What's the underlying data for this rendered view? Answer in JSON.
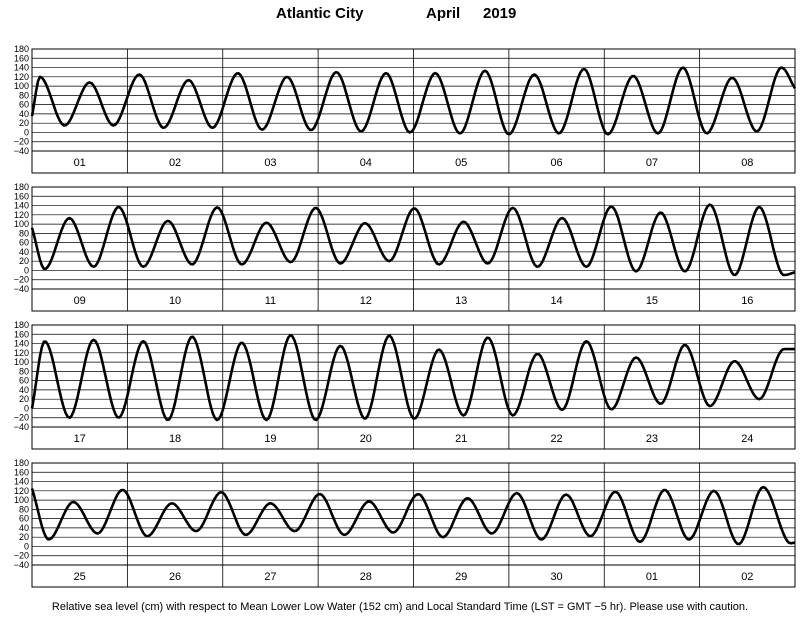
{
  "title": {
    "station": "Atlantic City",
    "month": "April",
    "year": "2019"
  },
  "caption": "Relative sea level (cm) with respect to Mean Lower Low Water (152 cm) and Local Standard Time (LST = GMT −5 hr). Please use with caution.",
  "colors": {
    "line": "#000000",
    "grid": "#000000",
    "background": "#ffffff"
  },
  "chart_data": {
    "type": "line",
    "ylabel": "",
    "xlabel": "",
    "ylim": [
      -40,
      180
    ],
    "yticks": [
      -40,
      -20,
      0,
      20,
      40,
      60,
      80,
      100,
      120,
      140,
      160,
      180
    ],
    "panels": [
      {
        "days": [
          "01",
          "02",
          "03",
          "04",
          "05",
          "06",
          "07",
          "08"
        ],
        "tide_series": [
          {
            "time_h": 0,
            "level_cm": 35
          },
          {
            "time_h": 2,
            "level_cm": 120
          },
          {
            "time_h": 8.2,
            "level_cm": 15
          },
          {
            "time_h": 14.5,
            "level_cm": 108
          },
          {
            "time_h": 20.5,
            "level_cm": 15
          },
          {
            "time_h": 27,
            "level_cm": 125
          },
          {
            "time_h": 33.1,
            "level_cm": 10
          },
          {
            "time_h": 39.4,
            "level_cm": 113
          },
          {
            "time_h": 45.4,
            "level_cm": 10
          },
          {
            "time_h": 51.8,
            "level_cm": 128
          },
          {
            "time_h": 57.9,
            "level_cm": 6
          },
          {
            "time_h": 64.2,
            "level_cm": 120
          },
          {
            "time_h": 70.2,
            "level_cm": 5
          },
          {
            "time_h": 76.6,
            "level_cm": 130
          },
          {
            "time_h": 82.8,
            "level_cm": 2
          },
          {
            "time_h": 89.1,
            "level_cm": 128
          },
          {
            "time_h": 95.1,
            "level_cm": 0
          },
          {
            "time_h": 101.5,
            "level_cm": 128
          },
          {
            "time_h": 107.7,
            "level_cm": -2
          },
          {
            "time_h": 114,
            "level_cm": 133
          },
          {
            "time_h": 120,
            "level_cm": -4
          },
          {
            "time_h": 126.4,
            "level_cm": 125
          },
          {
            "time_h": 132.6,
            "level_cm": -2
          },
          {
            "time_h": 138.9,
            "level_cm": 137
          },
          {
            "time_h": 144.9,
            "level_cm": -4
          },
          {
            "time_h": 151.3,
            "level_cm": 122
          },
          {
            "time_h": 157.5,
            "level_cm": -2
          },
          {
            "time_h": 163.8,
            "level_cm": 140
          },
          {
            "time_h": 169.8,
            "level_cm": -2
          },
          {
            "time_h": 176.2,
            "level_cm": 118
          },
          {
            "time_h": 182.4,
            "level_cm": 2
          },
          {
            "time_h": 188.6,
            "level_cm": 140
          },
          {
            "time_h": 192,
            "level_cm": 95
          }
        ]
      },
      {
        "days": [
          "09",
          "10",
          "11",
          "12",
          "13",
          "14",
          "15",
          "16"
        ],
        "tide_series": [
          {
            "time_h": 0,
            "level_cm": 92
          },
          {
            "time_h": 3.2,
            "level_cm": 3
          },
          {
            "time_h": 9.4,
            "level_cm": 113
          },
          {
            "time_h": 15.5,
            "level_cm": 8
          },
          {
            "time_h": 21.8,
            "level_cm": 137
          },
          {
            "time_h": 28,
            "level_cm": 8
          },
          {
            "time_h": 34.2,
            "level_cm": 107
          },
          {
            "time_h": 40.3,
            "level_cm": 13
          },
          {
            "time_h": 46.6,
            "level_cm": 136
          },
          {
            "time_h": 52.8,
            "level_cm": 13
          },
          {
            "time_h": 59,
            "level_cm": 103
          },
          {
            "time_h": 65.1,
            "level_cm": 18
          },
          {
            "time_h": 71.4,
            "level_cm": 135
          },
          {
            "time_h": 77.6,
            "level_cm": 15
          },
          {
            "time_h": 83.8,
            "level_cm": 102
          },
          {
            "time_h": 89.9,
            "level_cm": 20
          },
          {
            "time_h": 96.2,
            "level_cm": 134
          },
          {
            "time_h": 102.4,
            "level_cm": 13
          },
          {
            "time_h": 108.6,
            "level_cm": 105
          },
          {
            "time_h": 114.7,
            "level_cm": 15
          },
          {
            "time_h": 121,
            "level_cm": 135
          },
          {
            "time_h": 127.2,
            "level_cm": 8
          },
          {
            "time_h": 133.4,
            "level_cm": 113
          },
          {
            "time_h": 139.5,
            "level_cm": 8
          },
          {
            "time_h": 145.8,
            "level_cm": 138
          },
          {
            "time_h": 152,
            "level_cm": -2
          },
          {
            "time_h": 158.2,
            "level_cm": 125
          },
          {
            "time_h": 164.3,
            "level_cm": -2
          },
          {
            "time_h": 170.6,
            "level_cm": 142
          },
          {
            "time_h": 176.8,
            "level_cm": -10
          },
          {
            "time_h": 183,
            "level_cm": 137
          },
          {
            "time_h": 189.2,
            "level_cm": -10
          },
          {
            "time_h": 192,
            "level_cm": -4
          }
        ]
      },
      {
        "days": [
          "17",
          "18",
          "19",
          "20",
          "21",
          "22",
          "23",
          "24"
        ],
        "tide_series": [
          {
            "time_h": 0,
            "level_cm": 0
          },
          {
            "time_h": 3.2,
            "level_cm": 145
          },
          {
            "time_h": 9.4,
            "level_cm": -20
          },
          {
            "time_h": 15.5,
            "level_cm": 148
          },
          {
            "time_h": 21.8,
            "level_cm": -20
          },
          {
            "time_h": 28,
            "level_cm": 145
          },
          {
            "time_h": 34.2,
            "level_cm": -25
          },
          {
            "time_h": 40.3,
            "level_cm": 155
          },
          {
            "time_h": 46.6,
            "level_cm": -25
          },
          {
            "time_h": 52.8,
            "level_cm": 142
          },
          {
            "time_h": 59,
            "level_cm": -25
          },
          {
            "time_h": 65.1,
            "level_cm": 158
          },
          {
            "time_h": 71.4,
            "level_cm": -25
          },
          {
            "time_h": 77.6,
            "level_cm": 135
          },
          {
            "time_h": 83.8,
            "level_cm": -22
          },
          {
            "time_h": 89.9,
            "level_cm": 157
          },
          {
            "time_h": 96.2,
            "level_cm": -22
          },
          {
            "time_h": 102.4,
            "level_cm": 127
          },
          {
            "time_h": 108.6,
            "level_cm": -15
          },
          {
            "time_h": 114.7,
            "level_cm": 153
          },
          {
            "time_h": 121,
            "level_cm": -15
          },
          {
            "time_h": 127.2,
            "level_cm": 118
          },
          {
            "time_h": 133.4,
            "level_cm": -3
          },
          {
            "time_h": 139.5,
            "level_cm": 145
          },
          {
            "time_h": 145.8,
            "level_cm": -2
          },
          {
            "time_h": 152,
            "level_cm": 110
          },
          {
            "time_h": 158.2,
            "level_cm": 10
          },
          {
            "time_h": 164.3,
            "level_cm": 137
          },
          {
            "time_h": 170.6,
            "level_cm": 5
          },
          {
            "time_h": 176.8,
            "level_cm": 102
          },
          {
            "time_h": 183,
            "level_cm": 20
          },
          {
            "time_h": 189.2,
            "level_cm": 128
          },
          {
            "time_h": 192,
            "level_cm": 128
          }
        ]
      },
      {
        "days": [
          "25",
          "26",
          "27",
          "28",
          "29",
          "30",
          "01",
          "02"
        ],
        "tide_series": [
          {
            "time_h": 0,
            "level_cm": 125
          },
          {
            "time_h": 4.2,
            "level_cm": 15
          },
          {
            "time_h": 10.4,
            "level_cm": 96
          },
          {
            "time_h": 16.5,
            "level_cm": 28
          },
          {
            "time_h": 22.8,
            "level_cm": 122
          },
          {
            "time_h": 29,
            "level_cm": 22
          },
          {
            "time_h": 35.2,
            "level_cm": 93
          },
          {
            "time_h": 41.3,
            "level_cm": 33
          },
          {
            "time_h": 47.6,
            "level_cm": 117
          },
          {
            "time_h": 53.8,
            "level_cm": 25
          },
          {
            "time_h": 60,
            "level_cm": 93
          },
          {
            "time_h": 66.1,
            "level_cm": 33
          },
          {
            "time_h": 72.4,
            "level_cm": 113
          },
          {
            "time_h": 78.6,
            "level_cm": 25
          },
          {
            "time_h": 84.8,
            "level_cm": 97
          },
          {
            "time_h": 90.9,
            "level_cm": 30
          },
          {
            "time_h": 97.2,
            "level_cm": 113
          },
          {
            "time_h": 103.4,
            "level_cm": 20
          },
          {
            "time_h": 109.6,
            "level_cm": 104
          },
          {
            "time_h": 115.7,
            "level_cm": 28
          },
          {
            "time_h": 122,
            "level_cm": 115
          },
          {
            "time_h": 128.2,
            "level_cm": 15
          },
          {
            "time_h": 134.4,
            "level_cm": 112
          },
          {
            "time_h": 140.5,
            "level_cm": 22
          },
          {
            "time_h": 146.8,
            "level_cm": 118
          },
          {
            "time_h": 153,
            "level_cm": 10
          },
          {
            "time_h": 159.2,
            "level_cm": 122
          },
          {
            "time_h": 165.3,
            "level_cm": 15
          },
          {
            "time_h": 171.6,
            "level_cm": 120
          },
          {
            "time_h": 177.8,
            "level_cm": 5
          },
          {
            "time_h": 184,
            "level_cm": 128
          },
          {
            "time_h": 190.2,
            "level_cm": 10
          },
          {
            "time_h": 192,
            "level_cm": 8
          }
        ]
      }
    ]
  }
}
